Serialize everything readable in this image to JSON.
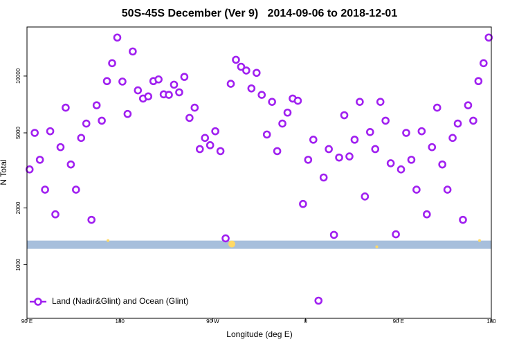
{
  "chart_data": {
    "type": "scatter",
    "title": "50S-45S December (Ver 9)   2014-09-06 to 2018-12-01",
    "x_label": "Longitude (deg E)",
    "y_label": "N Total",
    "xlim": [
      90,
      540
    ],
    "ylim": [
      520,
      18200
    ],
    "y_log": true,
    "xticks": [
      {
        "value": 90,
        "label": "90 E"
      },
      180,
      {
        "value": 270,
        "label": "90 W"
      },
      {
        "value": 360,
        "label": "0"
      },
      {
        "value": 450,
        "label": "90 E"
      },
      {
        "value": 540,
        "label": "180"
      }
    ],
    "yticks": [
      1000,
      2000,
      5000,
      10000
    ],
    "legend": "lower left",
    "band": {
      "color": "#a7bfdc",
      "range": [
        1214,
        1343
      ]
    },
    "highlights": {
      "color": "#ffd966",
      "x": [
        168.5,
        288.5,
        429,
        528.6
      ],
      "values": [
        1343,
        1288,
        1245,
        1343
      ]
    },
    "series": [
      {
        "name": "Land (Nadir&Glint) and Ocean (Glint)",
        "color": "#a020f0",
        "x": [
          92.5,
          97.5,
          102.5,
          107.5,
          112.5,
          117.5,
          122.5,
          127.5,
          132.5,
          137.5,
          142.5,
          147.5,
          152.5,
          157.5,
          162.5,
          167.5,
          172.5,
          177.5,
          182.5,
          187.5,
          192.5,
          197.5,
          202.5,
          207.5,
          212.5,
          217.5,
          222.5,
          227.5,
          232.5,
          237.5,
          242.5,
          247.5,
          252.5,
          257.5,
          262.5,
          267.5,
          272.5,
          277.5,
          282.5,
          287.5,
          292.5,
          297.5,
          302.5,
          307.5,
          312.5,
          317.5,
          322.5,
          327.5,
          332.5,
          337.5,
          342.5,
          347.5,
          352.5,
          357.5,
          362.5,
          367.5,
          372.5,
          377.5,
          382.5,
          387.5,
          392.5,
          397.5,
          402.5,
          407.5,
          412.5,
          417.5,
          422.5,
          427.5,
          432.5,
          437.5,
          442.5,
          447.5,
          452.5,
          457.5,
          462.5,
          467.5,
          472.5,
          477.5,
          482.5,
          487.5,
          492.5,
          497.5,
          502.5,
          507.5,
          512.5,
          517.5,
          522.5,
          527.5,
          532.5,
          537.5
        ],
        "values": [
          3200,
          5000,
          3600,
          2500,
          5100,
          1850,
          4200,
          6800,
          3400,
          2500,
          4700,
          5600,
          1730,
          7000,
          5800,
          9400,
          11700,
          16000,
          9350,
          6300,
          13500,
          8400,
          7600,
          7800,
          9400,
          9600,
          8000,
          7950,
          9000,
          8200,
          9900,
          6000,
          6800,
          4100,
          4700,
          4300,
          5100,
          4000,
          1380,
          9100,
          12200,
          11200,
          10700,
          8600,
          10400,
          7950,
          4900,
          7300,
          4000,
          5600,
          6400,
          7600,
          7400,
          2100,
          3600,
          4600,
          645,
          2900,
          4100,
          1440,
          3700,
          6200,
          3750,
          4600,
          7300,
          2300,
          5050,
          4100,
          7300,
          5800,
          3450,
          1450,
          3200,
          5000,
          3600,
          2500,
          5100,
          1850,
          4200,
          6800,
          3400,
          2500,
          4700,
          5600,
          1730,
          7000,
          5800,
          9400,
          11700,
          16000
        ]
      }
    ]
  }
}
